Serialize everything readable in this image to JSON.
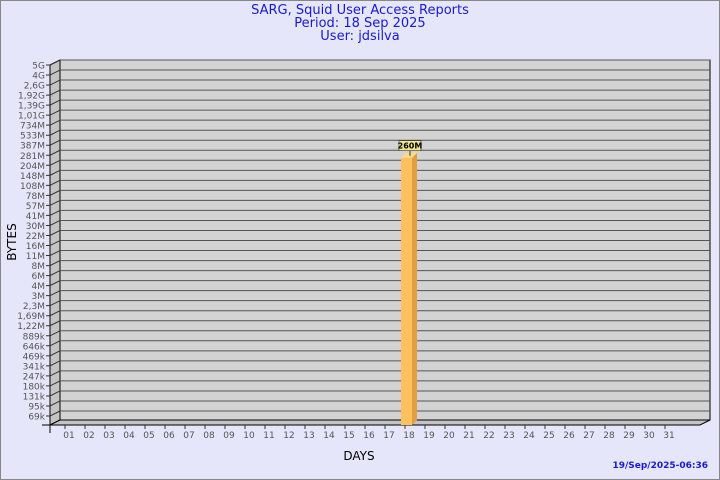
{
  "header": {
    "title": "SARG, Squid User Access Reports",
    "period": "Period: 18 Sep 2025",
    "user": "User: jdsilva"
  },
  "footer": {
    "timestamp": "19/Sep/2025-06:36"
  },
  "colors": {
    "background": "#e6e6fa",
    "plot": "#d3d3d3",
    "bar": "#ffc060",
    "text": "#1a1acd"
  },
  "chart_data": {
    "type": "bar",
    "title": "SARG, Squid User Access Reports",
    "xlabel": "DAYS",
    "ylabel": "BYTES",
    "y_scale": "log",
    "y_tick_labels": [
      "5G",
      "4G",
      "2,6G",
      "1,92G",
      "1,39G",
      "1,01G",
      "734M",
      "533M",
      "387M",
      "281M",
      "204M",
      "148M",
      "108M",
      "78M",
      "57M",
      "41M",
      "30M",
      "22M",
      "16M",
      "11M",
      "8M",
      "6M",
      "4M",
      "3M",
      "2,3M",
      "1,69M",
      "1,22M",
      "889k",
      "646k",
      "469k",
      "341k",
      "247k",
      "180k",
      "131k",
      "95k",
      "69k"
    ],
    "categories": [
      "01",
      "02",
      "03",
      "04",
      "05",
      "06",
      "07",
      "08",
      "09",
      "10",
      "11",
      "12",
      "13",
      "14",
      "15",
      "16",
      "17",
      "18",
      "19",
      "20",
      "21",
      "22",
      "23",
      "24",
      "25",
      "26",
      "27",
      "28",
      "29",
      "30",
      "31"
    ],
    "values": [
      0,
      0,
      0,
      0,
      0,
      0,
      0,
      0,
      0,
      0,
      0,
      0,
      0,
      0,
      0,
      0,
      0,
      260000000,
      0,
      0,
      0,
      0,
      0,
      0,
      0,
      0,
      0,
      0,
      0,
      0,
      0
    ],
    "data_labels": {
      "18": "260M"
    },
    "grid": true
  }
}
